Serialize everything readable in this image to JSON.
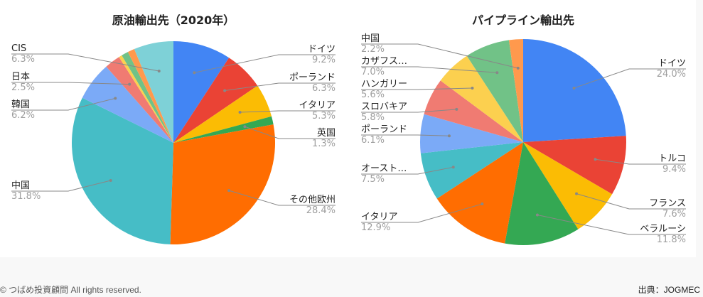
{
  "chart_data": [
    {
      "type": "pie",
      "title": "原油輸出先（2020年）",
      "slices": [
        {
          "label": "ドイツ",
          "value": 9.2,
          "display": "9.2%",
          "color": "#4285f4"
        },
        {
          "label": "ポーランド",
          "value": 6.3,
          "display": "6.3%",
          "color": "#ea4335"
        },
        {
          "label": "イタリア",
          "value": 5.3,
          "display": "5.3%",
          "color": "#fbbc04"
        },
        {
          "label": "英国",
          "value": 1.3,
          "display": "1.3%",
          "color": "#34a853"
        },
        {
          "label": "その他欧州",
          "value": 28.4,
          "display": "28.4%",
          "color": "#ff6d01"
        },
        {
          "label": "中国",
          "value": 31.8,
          "display": "31.8%",
          "color": "#46bdc6"
        },
        {
          "label": "韓国",
          "value": 6.2,
          "display": "6.2%",
          "color": "#7baaf7"
        },
        {
          "label": "日本",
          "value": 2.5,
          "display": "2.5%",
          "color": "#f07b72"
        },
        {
          "label": null,
          "value": 0.5,
          "display": null,
          "color": "#fcd04f"
        },
        {
          "label": null,
          "value": 1.1,
          "display": null,
          "color": "#71c287"
        },
        {
          "label": null,
          "value": 1.1,
          "display": null,
          "color": "#ff994d"
        },
        {
          "label": "CIS",
          "value": 6.3,
          "display": "6.3%",
          "color": "#7ed1d7"
        }
      ]
    },
    {
      "type": "pie",
      "title": "パイプライン輸出先",
      "slices": [
        {
          "label": "ドイツ",
          "value": 24.0,
          "display": "24.0%",
          "color": "#4285f4"
        },
        {
          "label": "トルコ",
          "value": 9.4,
          "display": "9.4%",
          "color": "#ea4335"
        },
        {
          "label": "フランス",
          "value": 7.6,
          "display": "7.6%",
          "color": "#fbbc04"
        },
        {
          "label": "ベラルーシ",
          "value": 11.8,
          "display": "11.8%",
          "color": "#34a853"
        },
        {
          "label": "イタリア",
          "value": 12.9,
          "display": "12.9%",
          "color": "#ff6d01"
        },
        {
          "label": "オースト…",
          "value": 7.5,
          "display": "7.5%",
          "color": "#46bdc6"
        },
        {
          "label": "ポーランド",
          "value": 6.1,
          "display": "6.1%",
          "color": "#7baaf7"
        },
        {
          "label": "スロバキア",
          "value": 5.8,
          "display": "5.8%",
          "color": "#f07b72"
        },
        {
          "label": "ハンガリー",
          "value": 5.6,
          "display": "5.6%",
          "color": "#fcd04f"
        },
        {
          "label": "カザフス…",
          "value": 7.0,
          "display": "7.0%",
          "color": "#71c287"
        },
        {
          "label": "中国",
          "value": 2.2,
          "display": "2.2%",
          "color": "#ff994d"
        }
      ]
    }
  ],
  "footer": {
    "copyright": "© つばめ投資顧問 All rights reserved.",
    "source": "出典：JOGMEC"
  }
}
